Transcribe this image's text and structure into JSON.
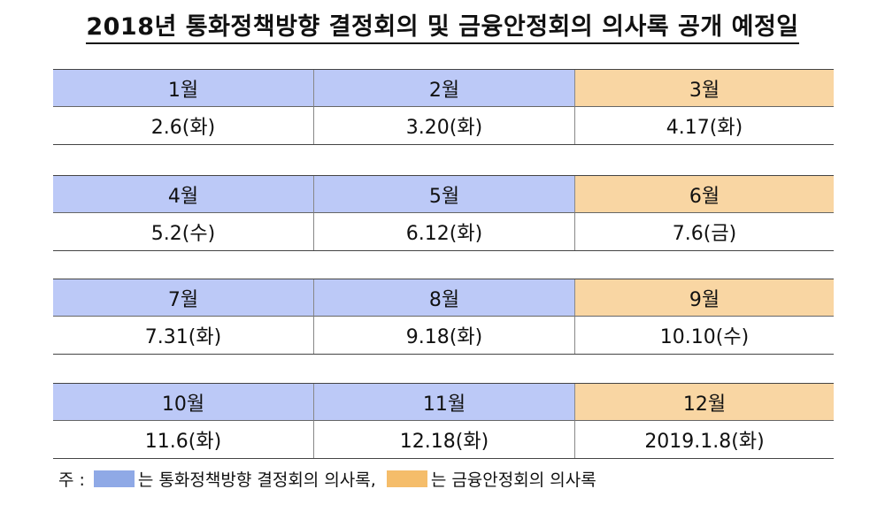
{
  "title": "2018년 통화정책방향 결정회의 및 금융안정회의 의사록 공개 예정일",
  "months": [
    {
      "month": "1월",
      "date": "2.6(화)",
      "type": "mpc"
    },
    {
      "month": "2월",
      "date": "3.20(화)",
      "type": "mpc"
    },
    {
      "month": "3월",
      "date": "4.17(화)",
      "type": "fsc"
    },
    {
      "month": "4월",
      "date": "5.2(수)",
      "type": "mpc"
    },
    {
      "month": "5월",
      "date": "6.12(화)",
      "type": "mpc"
    },
    {
      "month": "6월",
      "date": "7.6(금)",
      "type": "fsc"
    },
    {
      "month": "7월",
      "date": "7.31(화)",
      "type": "mpc"
    },
    {
      "month": "8월",
      "date": "9.18(화)",
      "type": "mpc"
    },
    {
      "month": "9월",
      "date": "10.10(수)",
      "type": "fsc"
    },
    {
      "month": "10월",
      "date": "11.6(화)",
      "type": "mpc"
    },
    {
      "month": "11월",
      "date": "12.18(화)",
      "type": "mpc"
    },
    {
      "month": "12월",
      "date": "2019.1.8(화)",
      "type": "fsc"
    }
  ],
  "legend": {
    "prefix": "주 :",
    "mpc_text": "는 통화정책방향 결정회의 의사록,",
    "fsc_text": "는 금융안정회의 의사록",
    "mpc_color": "#8fa9e6",
    "fsc_color": "#f5bd6a"
  }
}
